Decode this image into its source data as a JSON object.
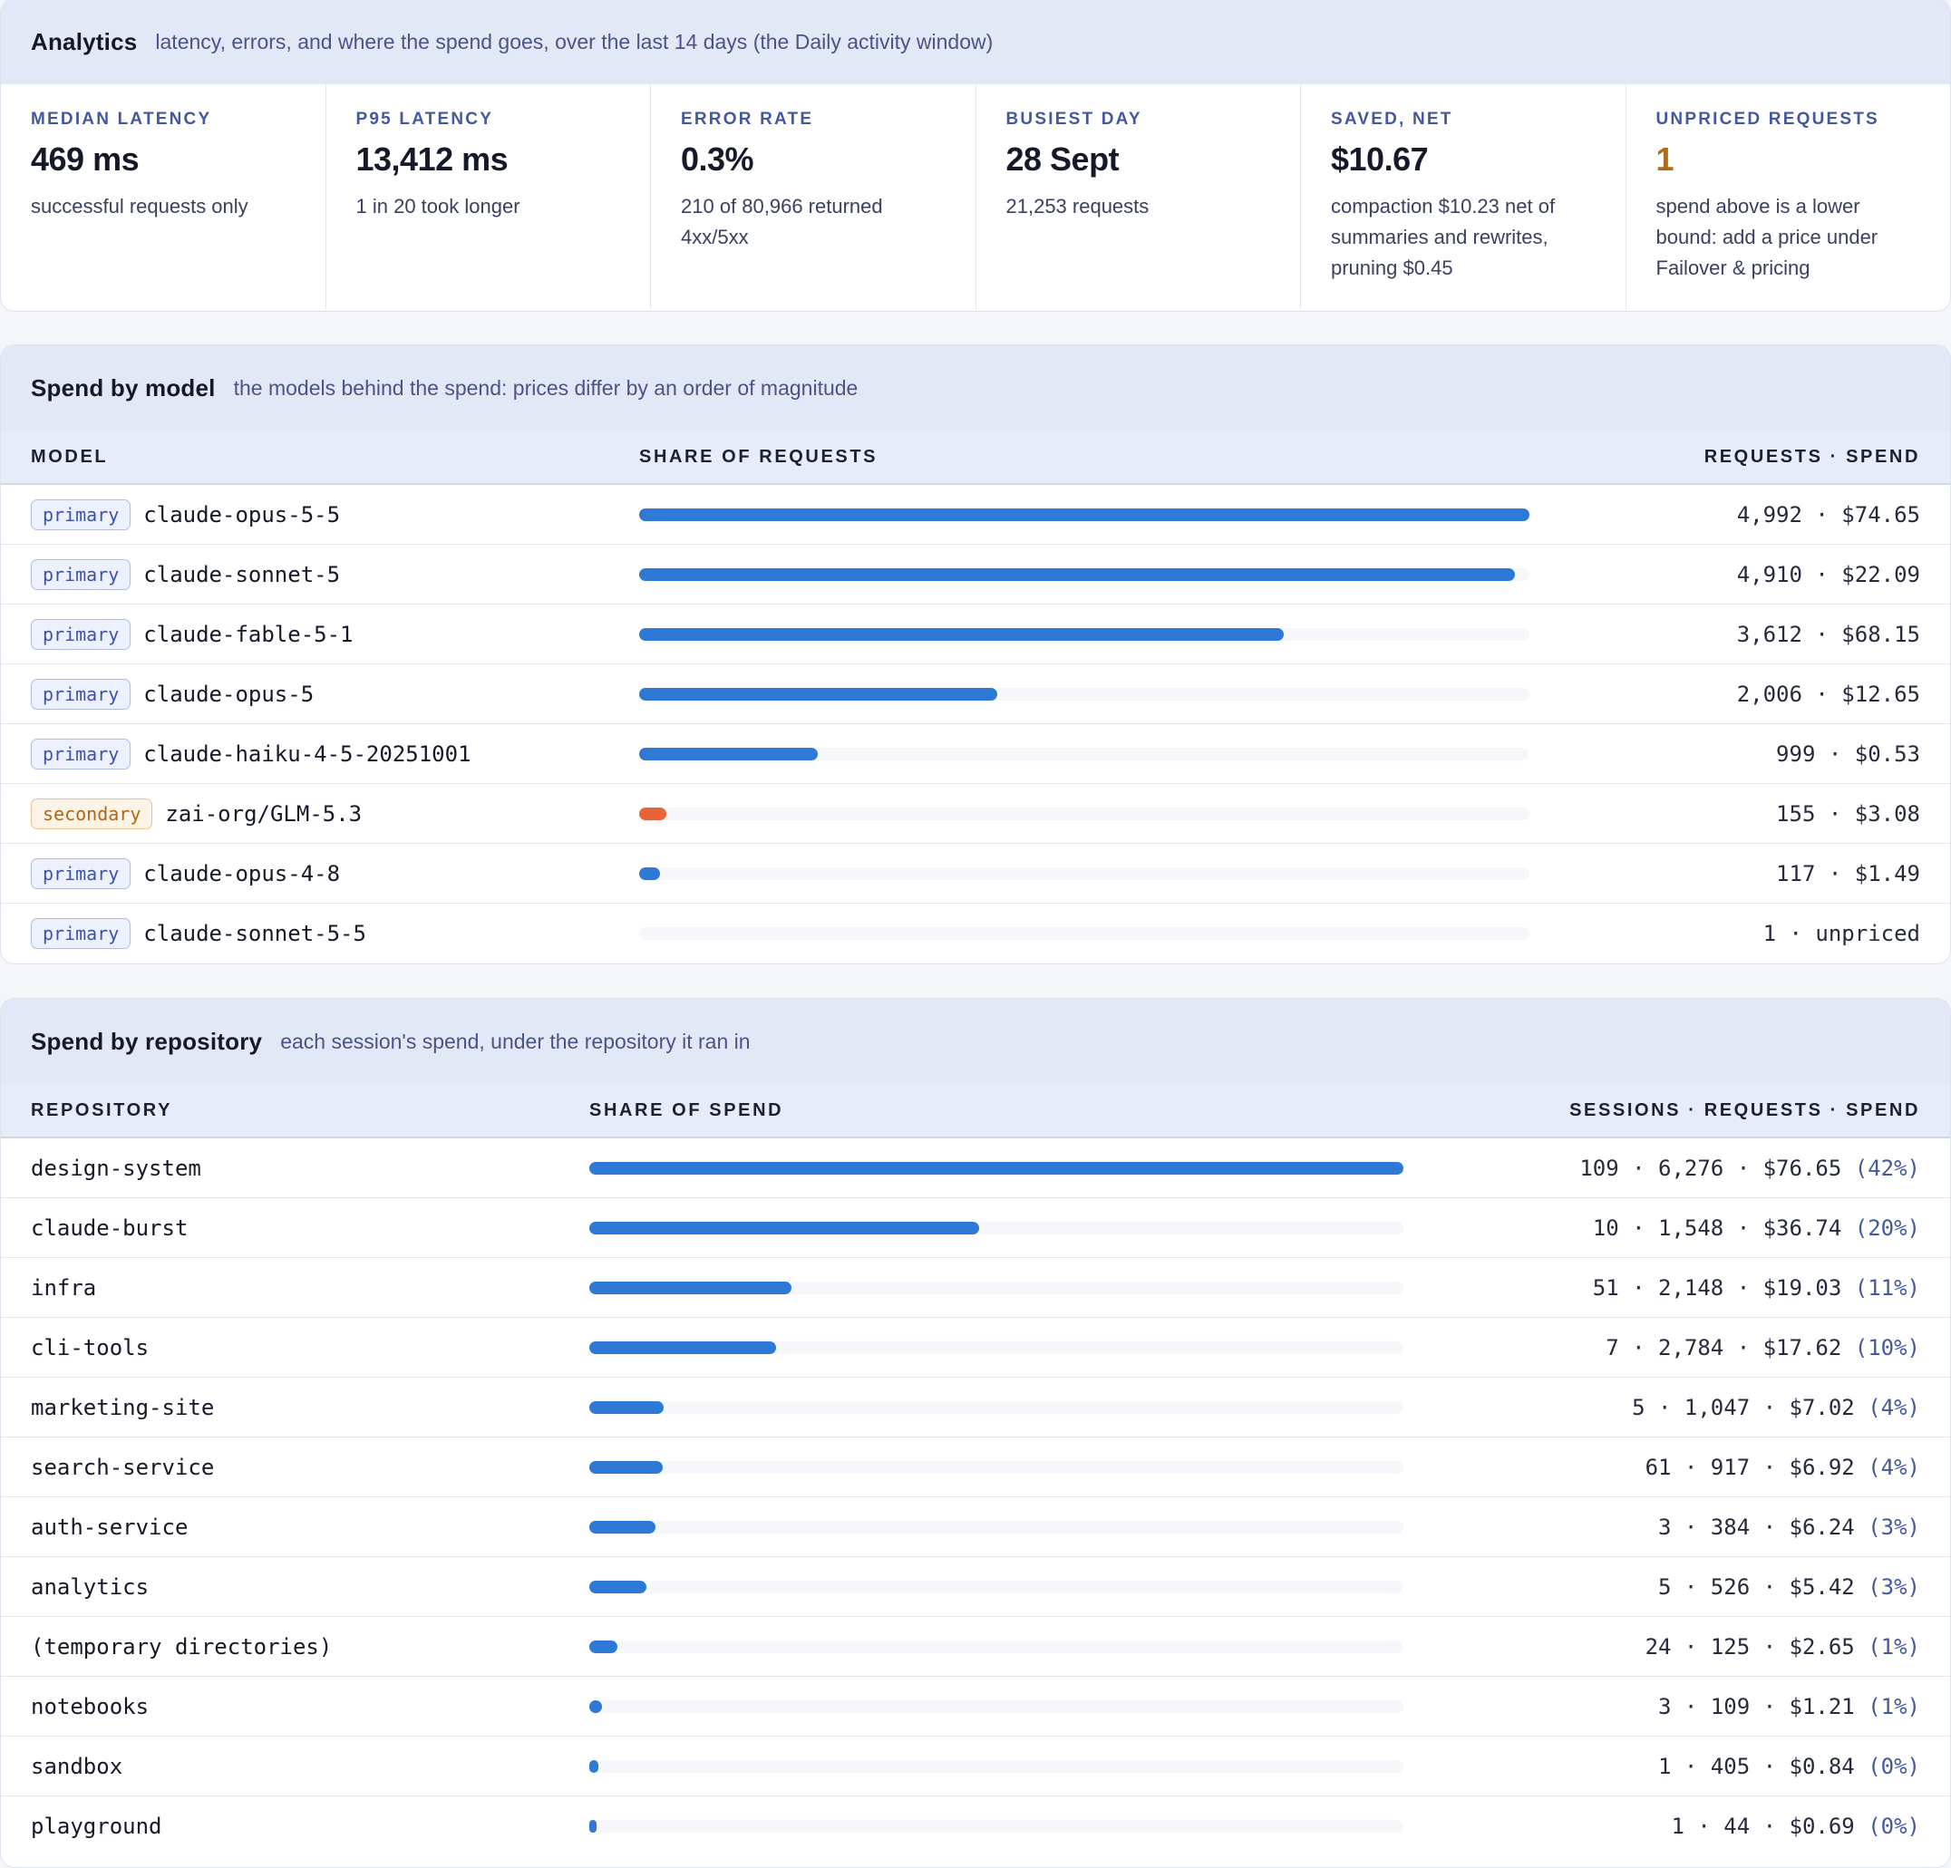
{
  "analytics": {
    "title": "Analytics",
    "subtitle": "latency, errors, and where the spend goes, over the last 14 days (the Daily activity window)",
    "kpis": [
      {
        "label": "MEDIAN LATENCY",
        "value": "469 ms",
        "note": "successful requests only"
      },
      {
        "label": "P95 LATENCY",
        "value": "13,412 ms",
        "note": "1 in 20 took longer"
      },
      {
        "label": "ERROR RATE",
        "value": "0.3%",
        "note": "210 of 80,966 returned 4xx/5xx"
      },
      {
        "label": "BUSIEST DAY",
        "value": "28 Sept",
        "note": "21,253 requests"
      },
      {
        "label": "SAVED, NET",
        "value": "$10.67",
        "note": "compaction $10.23 net of summaries and rewrites, pruning $0.45"
      },
      {
        "label": "UNPRICED REQUESTS",
        "value": "1",
        "note": "spend above is a lower bound: add a price under Failover & pricing"
      }
    ]
  },
  "spend_by_model": {
    "title": "Spend by model",
    "subtitle": "the models behind the spend: prices differ by an order of magnitude",
    "columns": [
      "MODEL",
      "SHARE OF REQUESTS",
      "REQUESTS · SPEND"
    ],
    "rows": [
      {
        "tag": "primary",
        "model": "claude-opus-5-5",
        "requests": 4992,
        "stats": "4,992 · $74.65"
      },
      {
        "tag": "primary",
        "model": "claude-sonnet-5",
        "requests": 4910,
        "stats": "4,910 · $22.09"
      },
      {
        "tag": "primary",
        "model": "claude-fable-5-1",
        "requests": 3612,
        "stats": "3,612 · $68.15"
      },
      {
        "tag": "primary",
        "model": "claude-opus-5",
        "requests": 2006,
        "stats": "2,006 · $12.65"
      },
      {
        "tag": "primary",
        "model": "claude-haiku-4-5-20251001",
        "requests": 999,
        "stats": "999 · $0.53"
      },
      {
        "tag": "secondary",
        "model": "zai-org/GLM-5.3",
        "requests": 155,
        "stats": "155 · $3.08"
      },
      {
        "tag": "primary",
        "model": "claude-opus-4-8",
        "requests": 117,
        "stats": "117 · $1.49"
      },
      {
        "tag": "primary",
        "model": "claude-sonnet-5-5",
        "requests": 1,
        "stats": "1 · unpriced"
      }
    ],
    "colors": {
      "primary": "#2e78d6",
      "secondary": "#e8633a"
    }
  },
  "spend_by_repository": {
    "title": "Spend by repository",
    "subtitle": "each session's spend, under the repository it ran in",
    "columns": [
      "REPOSITORY",
      "SHARE OF SPEND",
      "SESSIONS · REQUESTS · SPEND"
    ],
    "rows": [
      {
        "repo": "design-system",
        "spend": 76.65,
        "stats": "109 · 6,276 · $76.65",
        "pct": "(42%)"
      },
      {
        "repo": "claude-burst",
        "spend": 36.74,
        "stats": "10 · 1,548 · $36.74",
        "pct": "(20%)"
      },
      {
        "repo": "infra",
        "spend": 19.03,
        "stats": "51 · 2,148 · $19.03",
        "pct": "(11%)"
      },
      {
        "repo": "cli-tools",
        "spend": 17.62,
        "stats": "7 · 2,784 · $17.62",
        "pct": "(10%)"
      },
      {
        "repo": "marketing-site",
        "spend": 7.02,
        "stats": "5 · 1,047 · $7.02",
        "pct": "(4%)"
      },
      {
        "repo": "search-service",
        "spend": 6.92,
        "stats": "61 · 917 · $6.92",
        "pct": "(4%)"
      },
      {
        "repo": "auth-service",
        "spend": 6.24,
        "stats": "3 · 384 · $6.24",
        "pct": "(3%)"
      },
      {
        "repo": "analytics",
        "spend": 5.42,
        "stats": "5 · 526 · $5.42",
        "pct": "(3%)"
      },
      {
        "repo": "(temporary directories)",
        "spend": 2.65,
        "stats": "24 · 125 · $2.65",
        "pct": "(1%)"
      },
      {
        "repo": "notebooks",
        "spend": 1.21,
        "stats": "3 · 109 · $1.21",
        "pct": "(1%)"
      },
      {
        "repo": "sandbox",
        "spend": 0.84,
        "stats": "1 · 405 · $0.84",
        "pct": "(0%)"
      },
      {
        "repo": "playground",
        "spend": 0.69,
        "stats": "1 · 44 · $0.69",
        "pct": "(0%)"
      }
    ],
    "bar_color": "#2e78d6"
  }
}
